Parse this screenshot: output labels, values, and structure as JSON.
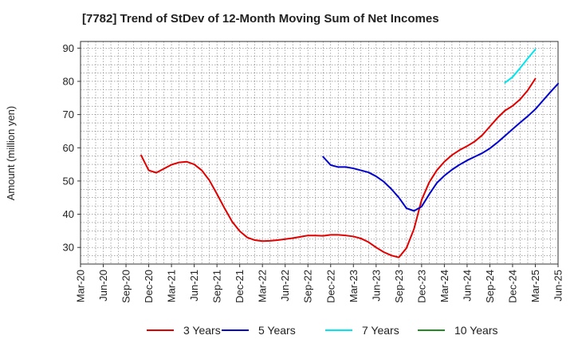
{
  "chart_data": {
    "type": "line",
    "title": "[7782]  Trend of StDev of 12-Month Moving Sum of Net Incomes",
    "ylabel": "Amount (million yen)",
    "xlabel": "",
    "ylim": [
      25,
      92
    ],
    "yticks": [
      30,
      40,
      50,
      60,
      70,
      80,
      90
    ],
    "xticks": [
      "Mar-20",
      "Jun-20",
      "Sep-20",
      "Dec-20",
      "Mar-21",
      "Jun-21",
      "Sep-21",
      "Dec-21",
      "Mar-22",
      "Jun-22",
      "Sep-22",
      "Dec-22",
      "Mar-23",
      "Jun-23",
      "Sep-23",
      "Dec-23",
      "Mar-24",
      "Jun-24",
      "Sep-24",
      "Dec-24",
      "Mar-25",
      "Jun-25"
    ],
    "grid": true,
    "legend_position": "bottom",
    "series": [
      {
        "name": "3 Years",
        "color": "#e00000",
        "start": "Nov-20",
        "values": [
          57.7,
          53.2,
          52.5,
          53.7,
          54.9,
          55.6,
          55.8,
          55.0,
          53.2,
          50.2,
          46.1,
          41.8,
          37.8,
          34.9,
          33.0,
          32.2,
          31.9,
          32.0,
          32.2,
          32.5,
          32.8,
          33.2,
          33.6,
          33.6,
          33.5,
          33.8,
          33.8,
          33.6,
          33.3,
          32.7,
          31.6,
          30.0,
          28.6,
          27.6,
          27.0,
          29.8,
          35.6,
          44.3,
          49.6,
          53.2,
          55.8,
          57.8,
          59.3,
          60.5,
          61.9,
          63.8,
          66.4,
          69.0,
          71.2,
          72.6,
          74.6,
          77.3,
          80.8
        ]
      },
      {
        "name": "5 Years",
        "color": "#0000cc",
        "start": "Nov-22",
        "values": [
          57.3,
          54.8,
          54.2,
          54.2,
          53.8,
          53.2,
          52.6,
          51.4,
          49.8,
          47.6,
          45.0,
          41.8,
          41.0,
          42.3,
          46.0,
          49.4,
          51.6,
          53.4,
          54.9,
          56.2,
          57.3,
          58.4,
          59.8,
          61.6,
          63.6,
          65.6,
          67.6,
          69.5,
          71.6,
          74.2,
          76.8,
          79.3
        ]
      },
      {
        "name": "7 Years",
        "color": "#00e5ee",
        "start": "Nov-24",
        "values": [
          79.6,
          81.3,
          84.0,
          86.9,
          89.6
        ]
      },
      {
        "name": "10 Years",
        "color": "#228b22",
        "start": "Mar-25",
        "values": []
      }
    ]
  }
}
